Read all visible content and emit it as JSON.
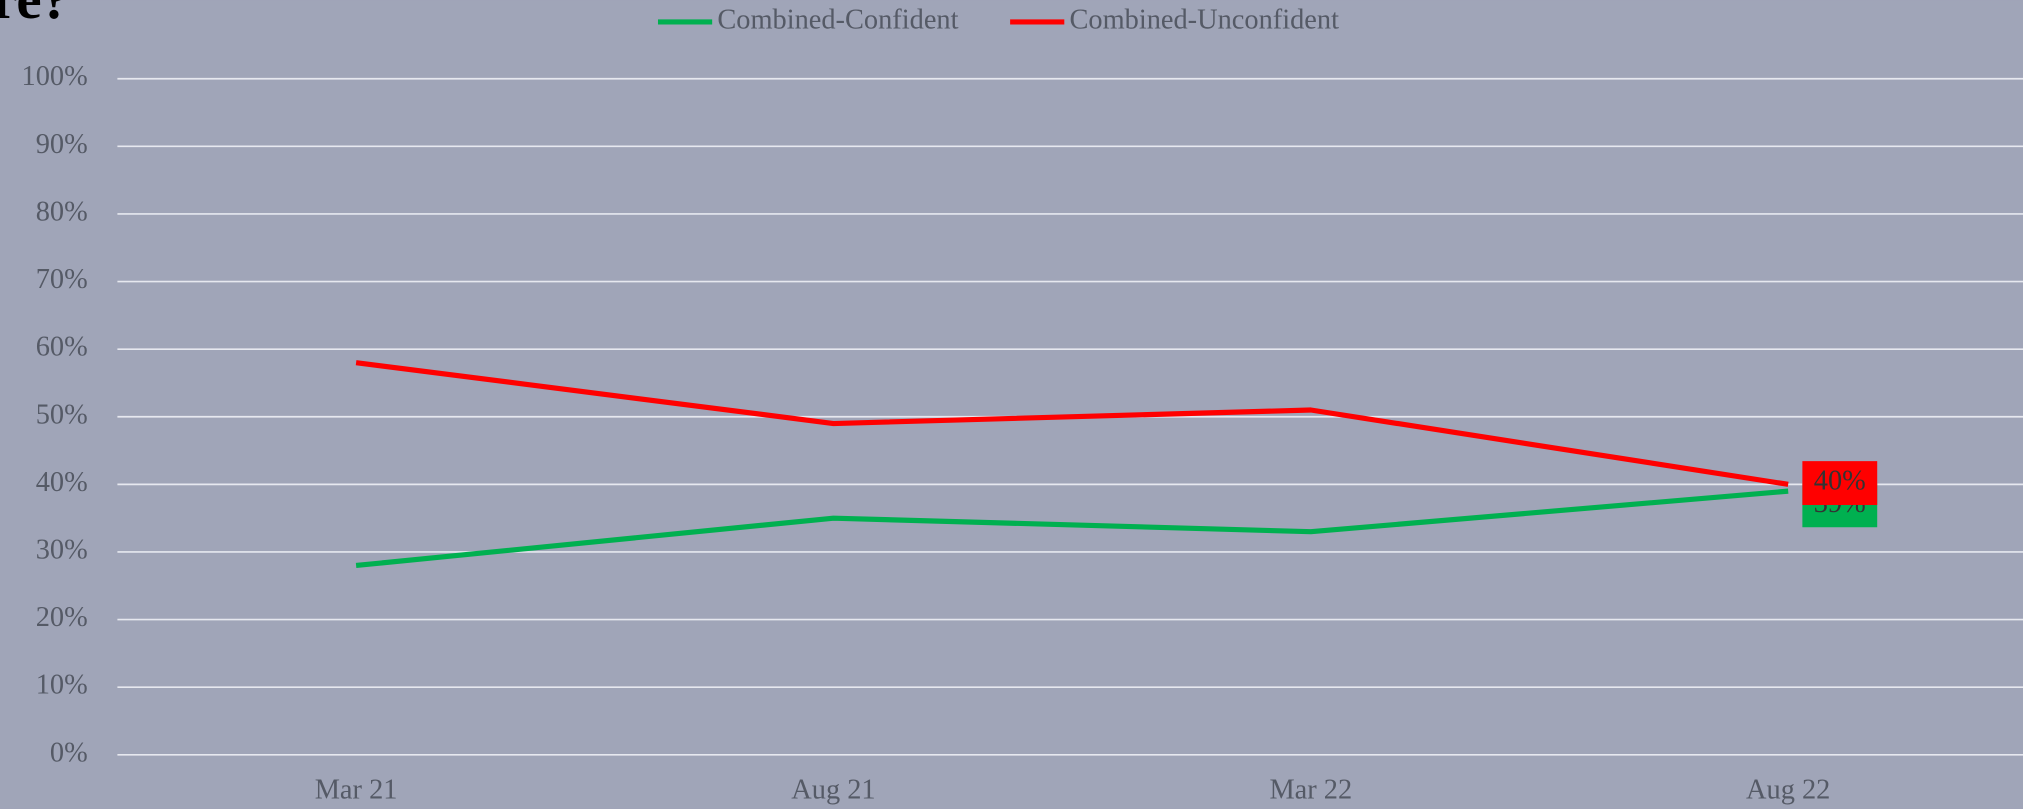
{
  "chart_data": {
    "type": "line",
    "title": "re?",
    "categories": [
      "Mar 21",
      "Aug 21",
      "Mar 22",
      "Aug 22"
    ],
    "series": [
      {
        "name": "Combined-Confident",
        "color": "#00b050",
        "values": [
          28,
          35,
          33,
          39
        ],
        "value_labels": [
          null,
          null,
          null,
          "39%"
        ]
      },
      {
        "name": "Combined-Unconfident",
        "color": "#ff0000",
        "values": [
          58,
          49,
          51,
          40
        ],
        "value_labels": [
          null,
          null,
          null,
          "40%"
        ]
      }
    ],
    "ylim": [
      0,
      100
    ],
    "yticks": [
      {
        "value": 0,
        "label": "0%"
      },
      {
        "value": 10,
        "label": "10%"
      },
      {
        "value": 20,
        "label": "20%"
      },
      {
        "value": 30,
        "label": "30%"
      },
      {
        "value": 40,
        "label": "40%"
      },
      {
        "value": 50,
        "label": "50%"
      },
      {
        "value": 60,
        "label": "60%"
      },
      {
        "value": 70,
        "label": "70%"
      },
      {
        "value": 80,
        "label": "80%"
      },
      {
        "value": 90,
        "label": "90%"
      },
      {
        "value": 100,
        "label": "100%"
      }
    ],
    "grid": true,
    "legend": "top"
  }
}
